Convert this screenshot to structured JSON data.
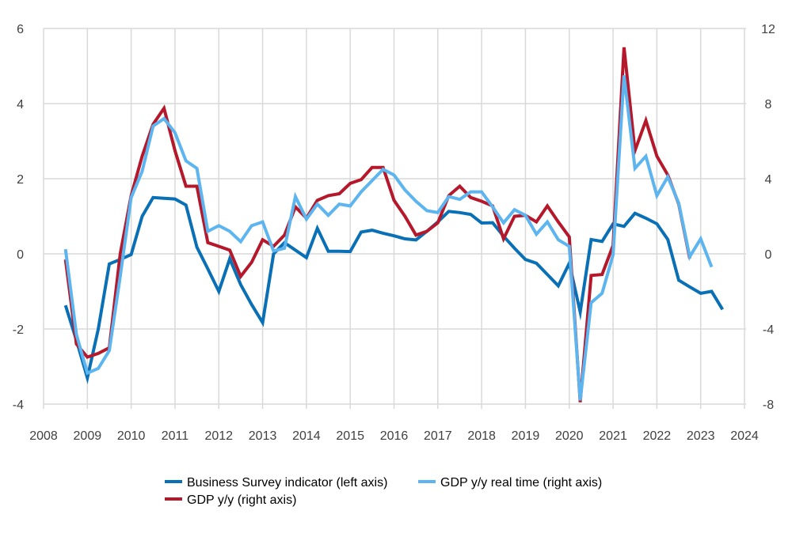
{
  "chart_data": {
    "type": "line",
    "title": "",
    "xlabel": "",
    "ylabel_left": "",
    "ylabel_right": "",
    "xlim": [
      2008,
      2024
    ],
    "x_ticks": [
      "2008",
      "2009",
      "2010",
      "2011",
      "2012",
      "2013",
      "2014",
      "2015",
      "2016",
      "2017",
      "2018",
      "2019",
      "2020",
      "2021",
      "2022",
      "2023",
      "2024"
    ],
    "ylim_left": [
      -4,
      6
    ],
    "y_ticks_left": [
      "6",
      "4",
      "2",
      "0",
      "-2",
      "-4"
    ],
    "ylim_right": [
      -8,
      12
    ],
    "y_ticks_right": [
      "12",
      "8",
      "4",
      "0",
      "-4",
      "-8"
    ],
    "grid": true,
    "legend_position": "bottom",
    "series": [
      {
        "name": "Business Survey indicator (left axis)",
        "axis": "left",
        "color": "#0a70b6",
        "x_start": 2008.5,
        "x_step": 0.25,
        "values": [
          -1.37,
          -2.3,
          -3.3,
          -2.0,
          -0.27,
          -0.15,
          -0.02,
          1.0,
          1.5,
          1.48,
          1.46,
          1.3,
          0.18,
          -0.4,
          -1.0,
          -0.13,
          -0.82,
          -1.35,
          -1.83,
          0.0,
          0.3,
          0.1,
          -0.1,
          0.68,
          0.07,
          0.07,
          0.06,
          0.58,
          0.63,
          0.55,
          0.48,
          0.4,
          0.37,
          0.6,
          0.85,
          1.13,
          1.1,
          1.05,
          0.82,
          0.83,
          0.47,
          0.15,
          -0.15,
          -0.25,
          -0.55,
          -0.85,
          -0.25,
          -1.55,
          0.38,
          0.33,
          0.8,
          0.73,
          1.08,
          0.95,
          0.8,
          0.38,
          -0.7,
          -0.88,
          -1.05,
          -1.0,
          -1.48
        ]
      },
      {
        "name": "GDP y/y (right axis)",
        "axis": "right",
        "color": "#b5172b",
        "x_start": 2008.5,
        "x_step": 0.25,
        "values": [
          -0.3,
          -4.8,
          -5.5,
          -5.3,
          -5.0,
          0.0,
          3.1,
          5.2,
          6.9,
          7.75,
          5.5,
          3.6,
          3.6,
          0.6,
          0.4,
          0.2,
          -1.2,
          -0.45,
          0.75,
          0.4,
          1.0,
          2.5,
          1.9,
          2.85,
          3.1,
          3.2,
          3.75,
          3.95,
          4.6,
          4.6,
          2.85,
          2.0,
          1.0,
          1.2,
          1.65,
          3.1,
          3.6,
          3.0,
          2.8,
          2.55,
          0.8,
          2.0,
          2.05,
          1.7,
          2.55,
          1.7,
          0.9,
          -7.9,
          -1.15,
          -1.1,
          0.45,
          11.0,
          5.5,
          7.1,
          5.2,
          4.2,
          2.65,
          -0.25
        ]
      },
      {
        "name": "GDP y/y real time (right axis)",
        "axis": "right",
        "color": "#5db5f0",
        "x_start": 2008.5,
        "x_step": 0.25,
        "values": [
          0.25,
          -4.3,
          -6.35,
          -6.1,
          -5.15,
          -1.2,
          3.0,
          4.4,
          6.8,
          7.2,
          6.45,
          4.95,
          4.55,
          1.2,
          1.5,
          1.2,
          0.65,
          1.5,
          1.7,
          0.15,
          0.3,
          3.05,
          1.85,
          2.65,
          2.05,
          2.65,
          2.55,
          3.3,
          3.9,
          4.5,
          4.2,
          3.4,
          2.8,
          2.3,
          2.2,
          3.05,
          2.9,
          3.3,
          3.3,
          2.5,
          1.65,
          2.35,
          2.05,
          1.05,
          1.7,
          0.75,
          0.4,
          -7.8,
          -2.6,
          -2.1,
          -0.05,
          9.5,
          4.55,
          5.2,
          3.1,
          4.1,
          2.7,
          -0.15,
          0.8,
          -0.7
        ]
      }
    ]
  }
}
